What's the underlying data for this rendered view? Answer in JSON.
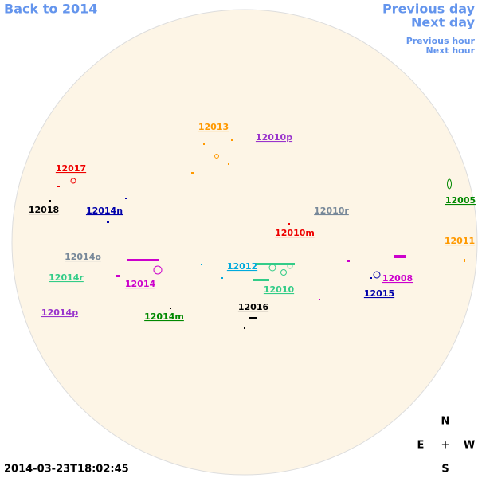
{
  "navigation": {
    "back": "Back to 2014",
    "previous_day": "Previous day",
    "next_day": "Next day",
    "previous_hour": "Previous hour",
    "next_hour": "Next hour"
  },
  "regions": [
    "12013",
    "12010p",
    "12017",
    "12005",
    "12018",
    "12014n",
    "12010r",
    "12010m",
    "12011",
    "12014o",
    "12012",
    "12014r",
    "12014",
    "12008",
    "12010",
    "12015",
    "12016",
    "12014p",
    "12014m"
  ],
  "timestamp": "2014-03-23T18:02:45",
  "compass": {
    "north": "N",
    "east": "E",
    "center": "+",
    "west": "W",
    "south": "S"
  }
}
